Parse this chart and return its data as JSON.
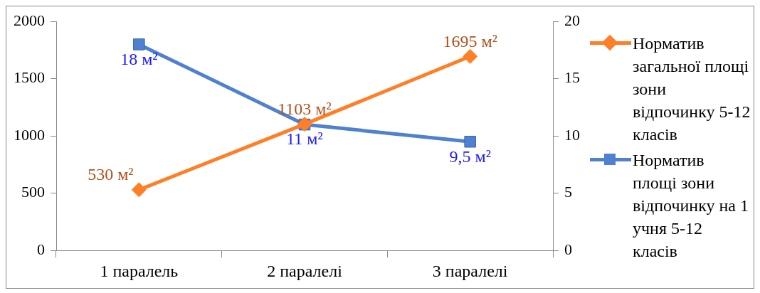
{
  "chart_data": {
    "type": "line",
    "categories": [
      "1 паралель",
      "2 паралелі",
      "3 паралелі"
    ],
    "series": [
      {
        "name": "Норматив загальної площі зони відпочинку 5-12 класів",
        "color": "#ff7f27",
        "values": [
          530,
          1103,
          1695
        ],
        "value_labels": [
          "530 м²",
          "1103 м²",
          "1695 м²"
        ],
        "marker": "diamond"
      },
      {
        "name": "Норматив площі зони відпочинку на 1 учня 5-12 класів",
        "color": "#4f81d0",
        "values": [
          18,
          11,
          9.5
        ],
        "value_labels": [
          "18 м²",
          "11 м²",
          "9,5 м²"
        ],
        "marker": "square",
        "axis": "y2"
      }
    ],
    "ylim": [
      0,
      2000
    ],
    "yticks": [
      0,
      500,
      1000,
      1500,
      2000
    ],
    "y2lim": [
      0,
      20
    ],
    "y2ticks": [
      0,
      5,
      10,
      15,
      20
    ],
    "grid": false,
    "legend": "right",
    "line_style": "solid"
  }
}
